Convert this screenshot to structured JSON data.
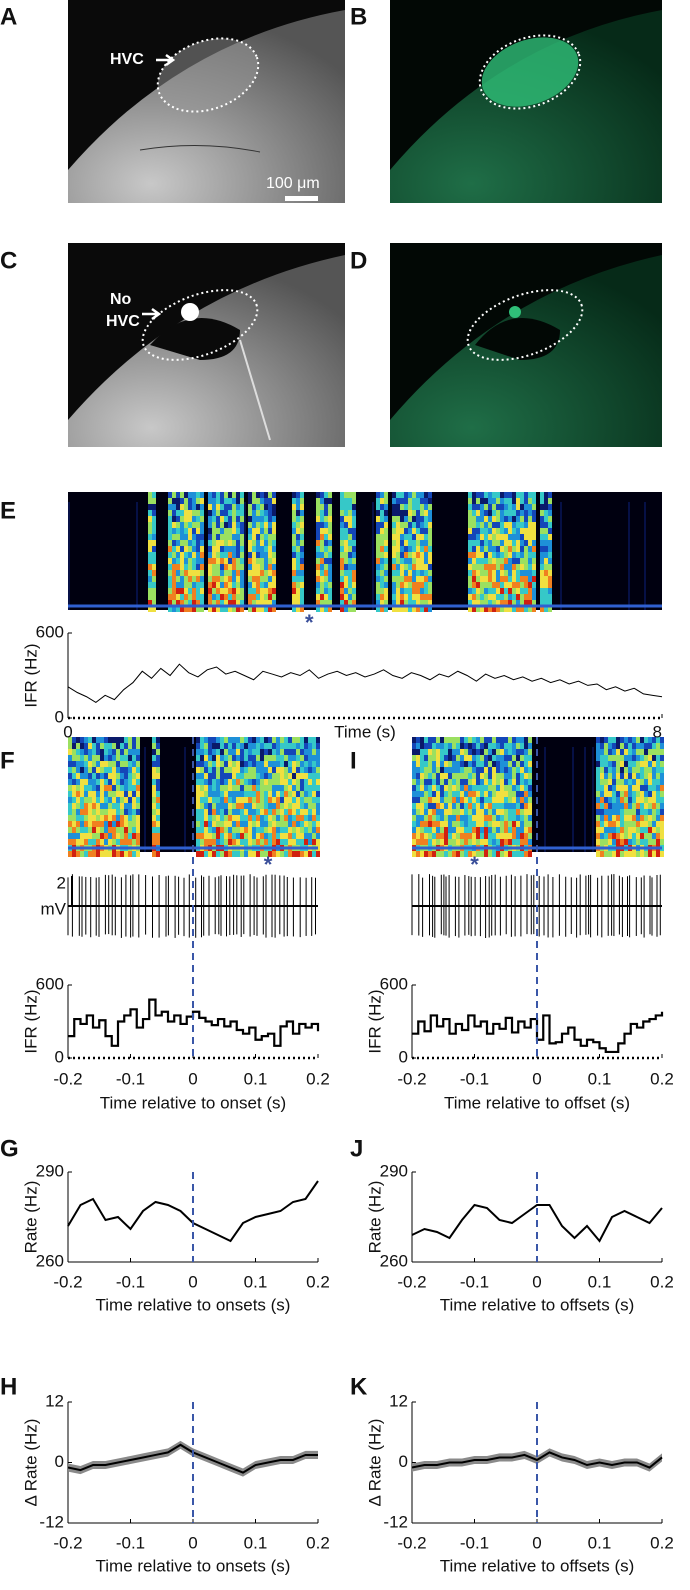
{
  "panel_labels": [
    "A",
    "B",
    "C",
    "D",
    "E",
    "F",
    "I",
    "G",
    "J",
    "H",
    "K"
  ],
  "annotations": {
    "hvc": "HVC",
    "scale_bar": "100 μm",
    "no_hvc": [
      "No",
      "HVC"
    ],
    "voltage_scale": [
      "2",
      "mV"
    ]
  },
  "chart_data": [
    {
      "type": "line",
      "step": false,
      "zero_line": true,
      "color": "#000000",
      "ylabel": "IFR (Hz)",
      "xlabel": "Time (s)",
      "xlim": [
        0,
        8
      ],
      "ylim": [
        0,
        600
      ],
      "xticks": [
        0,
        8
      ],
      "yticks": [
        0,
        600
      ],
      "marker": {
        "label": "*",
        "x": 3.25
      },
      "x": [
        0,
        0.125,
        0.25,
        0.375,
        0.5,
        0.625,
        0.75,
        0.875,
        1,
        1.125,
        1.25,
        1.375,
        1.5,
        1.625,
        1.75,
        1.875,
        2,
        2.125,
        2.25,
        2.375,
        2.5,
        2.625,
        2.75,
        2.875,
        3,
        3.125,
        3.25,
        3.375,
        3.5,
        3.625,
        3.75,
        3.875,
        4,
        4.125,
        4.25,
        4.375,
        4.5,
        4.625,
        4.75,
        4.875,
        5,
        5.125,
        5.25,
        5.375,
        5.5,
        5.625,
        5.75,
        5.875,
        6,
        6.125,
        6.25,
        6.375,
        6.5,
        6.625,
        6.75,
        6.875,
        7,
        7.125,
        7.25,
        7.375,
        7.5,
        7.625,
        7.75,
        7.875,
        8
      ],
      "values": [
        220,
        180,
        150,
        110,
        160,
        130,
        200,
        250,
        330,
        280,
        350,
        300,
        380,
        320,
        290,
        340,
        360,
        310,
        330,
        300,
        270,
        330,
        310,
        290,
        320,
        300,
        340,
        280,
        310,
        330,
        300,
        320,
        290,
        310,
        340,
        300,
        280,
        320,
        300,
        270,
        310,
        290,
        330,
        300,
        260,
        310,
        280,
        300,
        270,
        290,
        260,
        280,
        250,
        270,
        240,
        260,
        230,
        240,
        200,
        220,
        190,
        210,
        170,
        160,
        150
      ]
    },
    {
      "type": "line",
      "step": true,
      "zero_line": true,
      "color": "#000000",
      "ylabel": "IFR (Hz)",
      "xlabel": "Time relative to onset (s)",
      "xlim": [
        -0.2,
        0.2
      ],
      "ylim": [
        0,
        600
      ],
      "xticks": [
        -0.2,
        -0.1,
        0,
        0.1,
        0.2
      ],
      "yticks": [
        0,
        600
      ],
      "vline": 0,
      "marker": {
        "label": "*",
        "x": 0.12
      },
      "x": [
        -0.2,
        -0.19,
        -0.18,
        -0.17,
        -0.16,
        -0.15,
        -0.14,
        -0.13,
        -0.12,
        -0.11,
        -0.1,
        -0.09,
        -0.08,
        -0.07,
        -0.06,
        -0.05,
        -0.04,
        -0.03,
        -0.02,
        -0.01,
        0,
        0.01,
        0.02,
        0.03,
        0.04,
        0.05,
        0.06,
        0.07,
        0.08,
        0.09,
        0.1,
        0.11,
        0.12,
        0.13,
        0.14,
        0.15,
        0.16,
        0.17,
        0.18,
        0.19,
        0.2
      ],
      "values": [
        180,
        320,
        280,
        350,
        250,
        310,
        180,
        100,
        300,
        350,
        400,
        250,
        320,
        480,
        350,
        380,
        300,
        350,
        280,
        340,
        380,
        330,
        300,
        270,
        320,
        260,
        300,
        230,
        200,
        250,
        150,
        180,
        200,
        100,
        260,
        300,
        200,
        280,
        250,
        280,
        220
      ]
    },
    {
      "type": "line",
      "step": true,
      "zero_line": true,
      "color": "#000000",
      "ylabel": "IFR (Hz)",
      "xlabel": "Time relative to offset (s)",
      "xlim": [
        -0.2,
        0.2
      ],
      "ylim": [
        0,
        600
      ],
      "xticks": [
        -0.2,
        -0.1,
        0,
        0.1,
        0.2
      ],
      "yticks": [
        0,
        600
      ],
      "vline": 0,
      "marker": {
        "label": "*",
        "x": -0.1
      },
      "x": [
        -0.2,
        -0.19,
        -0.18,
        -0.17,
        -0.16,
        -0.15,
        -0.14,
        -0.13,
        -0.12,
        -0.11,
        -0.1,
        -0.09,
        -0.08,
        -0.07,
        -0.06,
        -0.05,
        -0.04,
        -0.03,
        -0.02,
        -0.01,
        0,
        0.01,
        0.02,
        0.03,
        0.04,
        0.05,
        0.06,
        0.07,
        0.08,
        0.09,
        0.1,
        0.11,
        0.12,
        0.13,
        0.14,
        0.15,
        0.16,
        0.17,
        0.18,
        0.19,
        0.2
      ],
      "values": [
        200,
        300,
        220,
        350,
        260,
        320,
        200,
        280,
        230,
        350,
        260,
        300,
        200,
        280,
        240,
        330,
        210,
        300,
        250,
        320,
        150,
        350,
        120,
        130,
        200,
        250,
        150,
        100,
        150,
        130,
        80,
        50,
        50,
        120,
        200,
        280,
        250,
        300,
        320,
        350,
        380
      ]
    },
    {
      "type": "line",
      "step": false,
      "zero_line": false,
      "color": "#000000",
      "ylabel": "Rate (Hz)",
      "xlabel": "Time relative to onsets (s)",
      "xlim": [
        -0.2,
        0.2
      ],
      "ylim": [
        260,
        290
      ],
      "xticks": [
        -0.2,
        -0.1,
        0,
        0.1,
        0.2
      ],
      "yticks": [
        260,
        290
      ],
      "vline": 0,
      "x": [
        -0.2,
        -0.18,
        -0.16,
        -0.14,
        -0.12,
        -0.1,
        -0.08,
        -0.06,
        -0.04,
        -0.02,
        0,
        0.02,
        0.04,
        0.06,
        0.08,
        0.1,
        0.12,
        0.14,
        0.16,
        0.18,
        0.2
      ],
      "values": [
        272,
        279,
        281,
        274,
        275,
        271,
        277,
        280,
        279,
        277,
        273,
        271,
        269,
        267,
        273,
        275,
        276,
        277,
        280,
        281,
        287
      ]
    },
    {
      "type": "line",
      "step": false,
      "zero_line": false,
      "color": "#000000",
      "ylabel": "Rate (Hz)",
      "xlabel": "Time relative to offsets (s)",
      "xlim": [
        -0.2,
        0.2
      ],
      "ylim": [
        260,
        290
      ],
      "xticks": [
        -0.2,
        -0.1,
        0,
        0.1,
        0.2
      ],
      "yticks": [
        260,
        290
      ],
      "vline": 0,
      "x": [
        -0.2,
        -0.18,
        -0.16,
        -0.14,
        -0.12,
        -0.1,
        -0.08,
        -0.06,
        -0.04,
        -0.02,
        0,
        0.02,
        0.04,
        0.06,
        0.08,
        0.1,
        0.12,
        0.14,
        0.16,
        0.18,
        0.2
      ],
      "values": [
        269,
        271,
        270,
        268,
        274,
        279,
        278,
        274,
        273,
        276,
        279,
        279,
        272,
        268,
        272,
        267,
        275,
        277,
        275,
        273,
        278
      ]
    },
    {
      "type": "line",
      "step": false,
      "zero_line": false,
      "color": "#000000",
      "band_color": "#8a8a8a",
      "ylabel": "Δ Rate (Hz)",
      "xlabel": "Time relative to onsets (s)",
      "xlim": [
        -0.2,
        0.2
      ],
      "ylim": [
        -12,
        12
      ],
      "xticks": [
        -0.2,
        -0.1,
        0,
        0.1,
        0.2
      ],
      "yticks": [
        -12,
        0,
        12
      ],
      "vline": 0,
      "x": [
        -0.2,
        -0.18,
        -0.16,
        -0.14,
        -0.12,
        -0.1,
        -0.08,
        -0.06,
        -0.04,
        -0.02,
        0,
        0.02,
        0.04,
        0.06,
        0.08,
        0.1,
        0.12,
        0.14,
        0.16,
        0.18,
        0.2
      ],
      "values": [
        -1,
        -1.5,
        -0.5,
        -0.5,
        0,
        0.5,
        1,
        1.5,
        2,
        3.5,
        2,
        1,
        0,
        -1,
        -2,
        -0.5,
        0,
        0.5,
        0.5,
        1.5,
        1.5
      ],
      "error": [
        0.8,
        0.8,
        0.8,
        0.8,
        0.8,
        0.8,
        0.8,
        0.8,
        0.8,
        0.8,
        0.8,
        0.8,
        0.8,
        0.8,
        0.8,
        0.8,
        0.8,
        0.8,
        0.8,
        0.8,
        0.8
      ]
    },
    {
      "type": "line",
      "step": false,
      "zero_line": false,
      "color": "#000000",
      "band_color": "#8a8a8a",
      "ylabel": "Δ Rate (Hz)",
      "xlabel": "Time relative to offsets (s)",
      "xlim": [
        -0.2,
        0.2
      ],
      "ylim": [
        -12,
        12
      ],
      "xticks": [
        -0.2,
        -0.1,
        0,
        0.1,
        0.2
      ],
      "yticks": [
        -12,
        0,
        12
      ],
      "vline": 0,
      "x": [
        -0.2,
        -0.18,
        -0.16,
        -0.14,
        -0.12,
        -0.1,
        -0.08,
        -0.06,
        -0.04,
        -0.02,
        0,
        0.02,
        0.04,
        0.06,
        0.08,
        0.1,
        0.12,
        0.14,
        0.16,
        0.18,
        0.2
      ],
      "values": [
        -1,
        -0.5,
        -0.5,
        0,
        0,
        0.5,
        0.5,
        1,
        1,
        1.5,
        0.5,
        2,
        1,
        0.5,
        -0.5,
        0,
        -0.5,
        0,
        0,
        -1,
        1
      ],
      "error": [
        0.8,
        0.8,
        0.8,
        0.8,
        0.8,
        0.8,
        0.8,
        0.8,
        0.8,
        0.8,
        0.8,
        0.8,
        0.8,
        0.8,
        0.8,
        0.8,
        0.8,
        0.8,
        0.8,
        0.8,
        0.8
      ]
    }
  ]
}
